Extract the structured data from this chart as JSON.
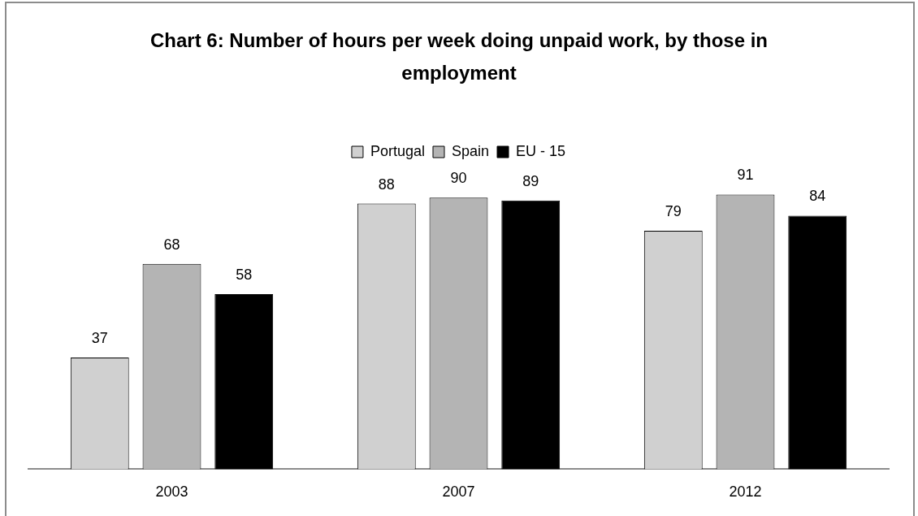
{
  "chart_data": {
    "type": "bar",
    "title": "Chart 6: Number of hours per week doing unpaid work, by those in employment",
    "categories": [
      "2003",
      "2007",
      "2012"
    ],
    "series": [
      {
        "name": "Portugal",
        "color": "#d0d0d0",
        "values": [
          37,
          88,
          79
        ]
      },
      {
        "name": "Spain",
        "color": "#b4b4b4",
        "values": [
          68,
          90,
          91
        ]
      },
      {
        "name": "EU - 15",
        "color": "#000000",
        "values": [
          58,
          89,
          84
        ]
      }
    ],
    "data_labels": true,
    "legend": "top",
    "grid": false
  }
}
